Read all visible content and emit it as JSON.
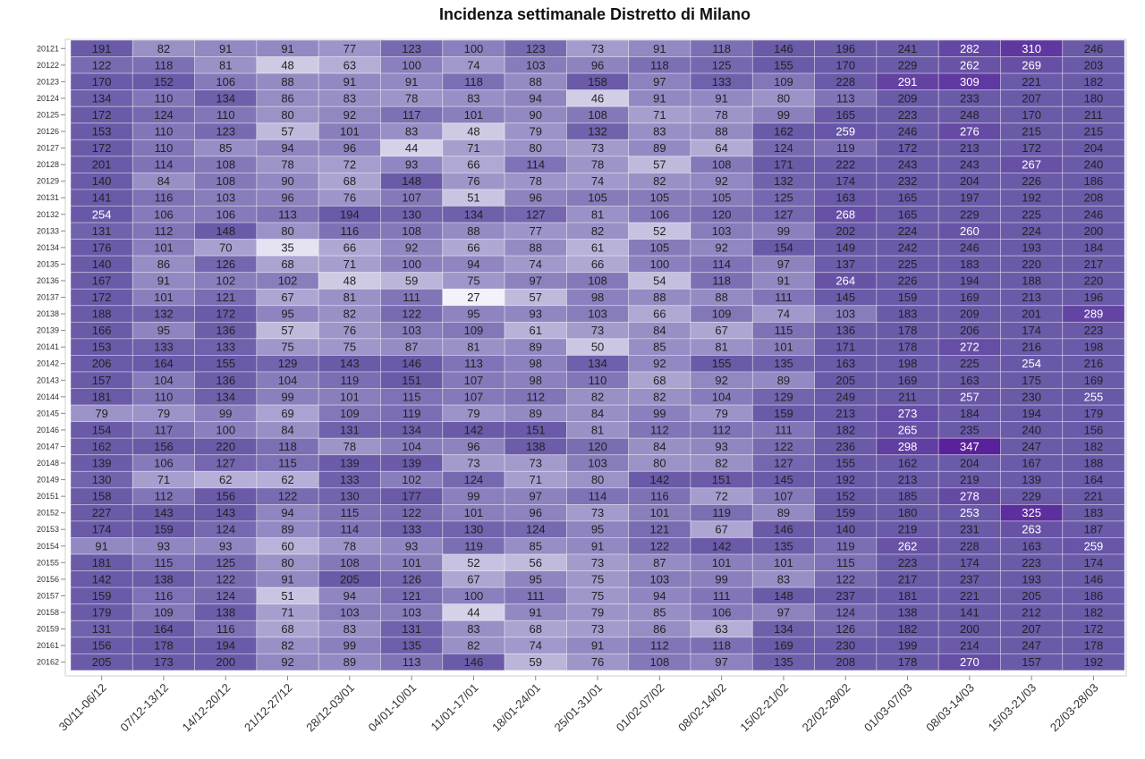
{
  "chart_data": {
    "type": "heatmap",
    "title": "Incidenza settimanale Distretto di Milano",
    "columns": [
      "30/11-06/12",
      "07/12-13/12",
      "14/12-20/12",
      "21/12-27/12",
      "28/12-03/01",
      "04/01-10/01",
      "11/01-17/01",
      "18/01-24/01",
      "25/01-31/01",
      "01/02-07/02",
      "08/02-14/02",
      "15/02-21/02",
      "22/02-28/02",
      "01/03-07/03",
      "08/03-14/03",
      "15/03-21/03",
      "22/03-28/03"
    ],
    "rows": [
      "20121",
      "20122",
      "20123",
      "20124",
      "20125",
      "20126",
      "20127",
      "20128",
      "20129",
      "20131",
      "20132",
      "20133",
      "20134",
      "20135",
      "20136",
      "20137",
      "20138",
      "20139",
      "20141",
      "20142",
      "20143",
      "20144",
      "20145",
      "20146",
      "20147",
      "20148",
      "20149",
      "20151",
      "20152",
      "20153",
      "20154",
      "20155",
      "20156",
      "20157",
      "20158",
      "20159",
      "20161",
      "20162"
    ],
    "values": [
      [
        191,
        82,
        91,
        91,
        77,
        123,
        100,
        123,
        73,
        91,
        118,
        146,
        196,
        241,
        282,
        310,
        246
      ],
      [
        122,
        118,
        81,
        48,
        63,
        100,
        74,
        103,
        96,
        118,
        125,
        155,
        170,
        229,
        262,
        269,
        203
      ],
      [
        170,
        152,
        106,
        88,
        91,
        91,
        118,
        88,
        158,
        97,
        133,
        109,
        228,
        291,
        309,
        221,
        182
      ],
      [
        134,
        110,
        134,
        86,
        83,
        78,
        83,
        94,
        46,
        91,
        91,
        80,
        113,
        209,
        233,
        207,
        180
      ],
      [
        172,
        124,
        110,
        80,
        92,
        117,
        101,
        90,
        108,
        71,
        78,
        99,
        165,
        223,
        248,
        170,
        211
      ],
      [
        153,
        110,
        123,
        57,
        101,
        83,
        48,
        79,
        132,
        83,
        88,
        162,
        259,
        246,
        276,
        215,
        215
      ],
      [
        172,
        110,
        85,
        94,
        96,
        44,
        71,
        80,
        73,
        89,
        64,
        124,
        119,
        172,
        213,
        172,
        204
      ],
      [
        201,
        114,
        108,
        78,
        72,
        93,
        66,
        114,
        78,
        57,
        108,
        171,
        222,
        243,
        243,
        267,
        240
      ],
      [
        140,
        84,
        108,
        90,
        68,
        148,
        76,
        78,
        74,
        82,
        92,
        132,
        174,
        232,
        204,
        226,
        186
      ],
      [
        141,
        116,
        103,
        96,
        76,
        107,
        51,
        96,
        105,
        105,
        105,
        125,
        163,
        165,
        197,
        192,
        208
      ],
      [
        254,
        106,
        106,
        113,
        194,
        130,
        134,
        127,
        81,
        106,
        120,
        127,
        268,
        165,
        229,
        225,
        246
      ],
      [
        131,
        112,
        148,
        80,
        116,
        108,
        88,
        77,
        82,
        52,
        103,
        99,
        202,
        224,
        260,
        224,
        200
      ],
      [
        176,
        101,
        70,
        35,
        66,
        92,
        66,
        88,
        61,
        105,
        92,
        154,
        149,
        242,
        246,
        193,
        184
      ],
      [
        140,
        86,
        126,
        68,
        71,
        100,
        94,
        74,
        66,
        100,
        114,
        97,
        137,
        225,
        183,
        220,
        217
      ],
      [
        167,
        91,
        102,
        102,
        48,
        59,
        75,
        97,
        108,
        54,
        118,
        91,
        264,
        226,
        194,
        188,
        220
      ],
      [
        172,
        101,
        121,
        67,
        81,
        111,
        27,
        57,
        98,
        88,
        88,
        111,
        145,
        159,
        169,
        213,
        196
      ],
      [
        188,
        132,
        172,
        95,
        82,
        122,
        95,
        93,
        103,
        66,
        109,
        74,
        103,
        183,
        209,
        201,
        289
      ],
      [
        166,
        95,
        136,
        57,
        76,
        103,
        109,
        61,
        73,
        84,
        67,
        115,
        136,
        178,
        206,
        174,
        223
      ],
      [
        153,
        133,
        133,
        75,
        75,
        87,
        81,
        89,
        50,
        85,
        81,
        101,
        171,
        178,
        272,
        216,
        198
      ],
      [
        206,
        164,
        155,
        129,
        143,
        146,
        113,
        98,
        134,
        92,
        155,
        135,
        163,
        198,
        225,
        254,
        216
      ],
      [
        157,
        104,
        136,
        104,
        119,
        151,
        107,
        98,
        110,
        68,
        92,
        89,
        205,
        169,
        163,
        175,
        169
      ],
      [
        181,
        110,
        134,
        99,
        101,
        115,
        107,
        112,
        82,
        82,
        104,
        129,
        249,
        211,
        257,
        230,
        255
      ],
      [
        79,
        79,
        99,
        69,
        109,
        119,
        79,
        89,
        84,
        99,
        79,
        159,
        213,
        273,
        184,
        194,
        179
      ],
      [
        154,
        117,
        100,
        84,
        131,
        134,
        142,
        151,
        81,
        112,
        112,
        111,
        182,
        265,
        235,
        240,
        156
      ],
      [
        162,
        156,
        220,
        118,
        78,
        104,
        96,
        138,
        120,
        84,
        93,
        122,
        236,
        298,
        347,
        247,
        182
      ],
      [
        139,
        106,
        127,
        115,
        139,
        139,
        73,
        73,
        103,
        80,
        82,
        127,
        155,
        162,
        204,
        167,
        188
      ],
      [
        130,
        71,
        62,
        62,
        133,
        102,
        124,
        71,
        80,
        142,
        151,
        145,
        192,
        213,
        219,
        139,
        164
      ],
      [
        158,
        112,
        156,
        122,
        130,
        177,
        99,
        97,
        114,
        116,
        72,
        107,
        152,
        185,
        278,
        229,
        221
      ],
      [
        227,
        143,
        143,
        94,
        115,
        122,
        101,
        96,
        73,
        101,
        119,
        89,
        159,
        180,
        253,
        325,
        183
      ],
      [
        174,
        159,
        124,
        89,
        114,
        133,
        130,
        124,
        95,
        121,
        67,
        146,
        140,
        219,
        231,
        263,
        187
      ],
      [
        91,
        93,
        93,
        60,
        78,
        93,
        119,
        85,
        91,
        122,
        142,
        135,
        119,
        262,
        228,
        163,
        259
      ],
      [
        181,
        115,
        125,
        80,
        108,
        101,
        52,
        56,
        73,
        87,
        101,
        101,
        115,
        223,
        174,
        223,
        174
      ],
      [
        142,
        138,
        122,
        91,
        205,
        126,
        67,
        95,
        75,
        103,
        99,
        83,
        122,
        217,
        237,
        193,
        146
      ],
      [
        159,
        116,
        124,
        51,
        94,
        121,
        100,
        111,
        75,
        94,
        111,
        148,
        237,
        181,
        221,
        205,
        186
      ],
      [
        179,
        109,
        138,
        71,
        103,
        103,
        44,
        91,
        79,
        85,
        106,
        97,
        124,
        138,
        141,
        212,
        182
      ],
      [
        131,
        164,
        116,
        68,
        83,
        131,
        83,
        68,
        73,
        86,
        63,
        134,
        126,
        182,
        200,
        207,
        172
      ],
      [
        156,
        178,
        194,
        82,
        99,
        135,
        82,
        74,
        91,
        112,
        118,
        169,
        230,
        199,
        214,
        247,
        178
      ],
      [
        205,
        173,
        200,
        92,
        89,
        113,
        146,
        59,
        76,
        108,
        97,
        135,
        208,
        178,
        270,
        157,
        192
      ]
    ],
    "grid": true,
    "legend": "none",
    "colors": {
      "lightest": "#f3f1f9",
      "mid": "#9f97ca",
      "dark": "#6a5aa8",
      "darkest": "#58209a",
      "text_dark": "#222222",
      "text_light": "#ffffff"
    }
  }
}
